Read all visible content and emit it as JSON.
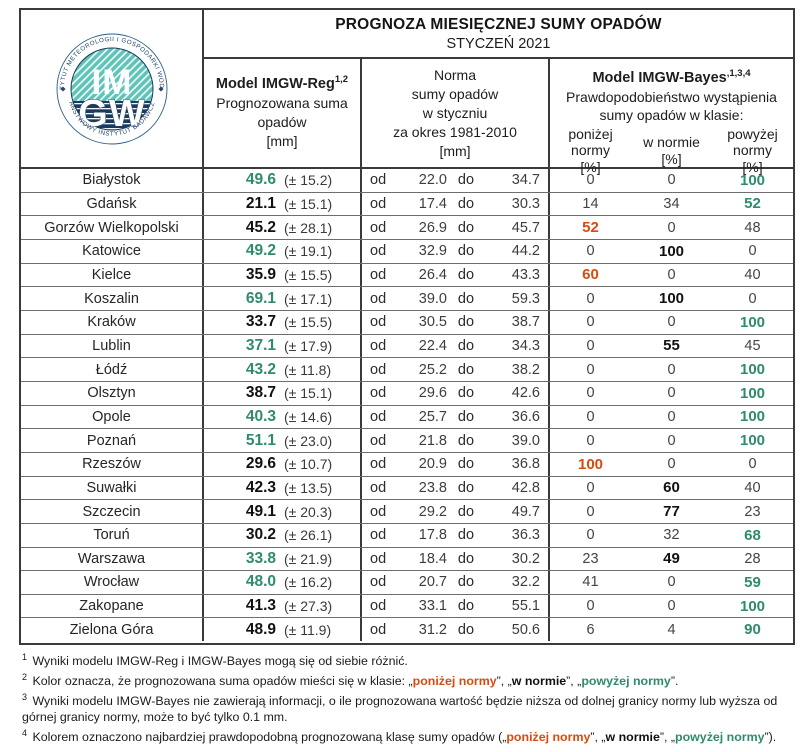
{
  "title": {
    "line1": "PROGNOZA MIESIĘCZNEJ SUMY OPADÓW",
    "line2": "STYCZEŃ 2021"
  },
  "logo": {
    "ring_top_text": "INSTYTUT METEOROLOGII I GOSPODARKI WODNEJ",
    "ring_bottom_text": "PAŃSTWOWY INSTYTUT BADAWCZY",
    "monogram_top": "IM",
    "monogram_bottom": "GW"
  },
  "columns": {
    "reg": {
      "title": "Model IMGW-Reg",
      "sup": "1,2",
      "line2": "Prognozowana suma",
      "line3": "opadów",
      "line4": "[mm]"
    },
    "norma": {
      "lines": [
        "Norma",
        "sumy opadów",
        "w styczniu",
        "za okres 1981-2010",
        "[mm]"
      ]
    },
    "bayes": {
      "title": "Model IMGW-Bayes",
      "sup": ",1,3,4",
      "line2": "Prawdopodobieństwo wystąpienia",
      "line3": "sumy opadów w klasie:",
      "classes": [
        {
          "l1": "poniżej",
          "l2": "normy",
          "l3": "[%]"
        },
        {
          "l1": "w normie",
          "l2": "[%]",
          "l3": ""
        },
        {
          "l1": "powyżej",
          "l2": "normy",
          "l3": "[%]"
        }
      ]
    }
  },
  "row_labels": {
    "od": "od",
    "do": "do"
  },
  "rows": [
    {
      "city": "Białystok",
      "value": "49.6",
      "value_class": "above",
      "pm": "(± 15.2)",
      "from": "22.0",
      "to": "34.7",
      "below": "0",
      "norm": "0",
      "above": "100",
      "max": "above"
    },
    {
      "city": "Gdańsk",
      "value": "21.1",
      "value_class": "norm",
      "pm": "(± 15.1)",
      "from": "17.4",
      "to": "30.3",
      "below": "14",
      "norm": "34",
      "above": "52",
      "max": "above"
    },
    {
      "city": "Gorzów Wielkopolski",
      "value": "45.2",
      "value_class": "norm",
      "pm": "(± 28.1)",
      "from": "26.9",
      "to": "45.7",
      "below": "52",
      "norm": "0",
      "above": "48",
      "max": "below"
    },
    {
      "city": "Katowice",
      "value": "49.2",
      "value_class": "above",
      "pm": "(± 19.1)",
      "from": "32.9",
      "to": "44.2",
      "below": "0",
      "norm": "100",
      "above": "0",
      "max": "norm"
    },
    {
      "city": "Kielce",
      "value": "35.9",
      "value_class": "norm",
      "pm": "(± 15.5)",
      "from": "26.4",
      "to": "43.3",
      "below": "60",
      "norm": "0",
      "above": "40",
      "max": "below"
    },
    {
      "city": "Koszalin",
      "value": "69.1",
      "value_class": "above",
      "pm": "(± 17.1)",
      "from": "39.0",
      "to": "59.3",
      "below": "0",
      "norm": "100",
      "above": "0",
      "max": "norm"
    },
    {
      "city": "Kraków",
      "value": "33.7",
      "value_class": "norm",
      "pm": "(± 15.5)",
      "from": "30.5",
      "to": "38.7",
      "below": "0",
      "norm": "0",
      "above": "100",
      "max": "above"
    },
    {
      "city": "Lublin",
      "value": "37.1",
      "value_class": "above",
      "pm": "(± 17.9)",
      "from": "22.4",
      "to": "34.3",
      "below": "0",
      "norm": "55",
      "above": "45",
      "max": "norm"
    },
    {
      "city": "Łódź",
      "value": "43.2",
      "value_class": "above",
      "pm": "(± 11.8)",
      "from": "25.2",
      "to": "38.2",
      "below": "0",
      "norm": "0",
      "above": "100",
      "max": "above"
    },
    {
      "city": "Olsztyn",
      "value": "38.7",
      "value_class": "norm",
      "pm": "(± 15.1)",
      "from": "29.6",
      "to": "42.6",
      "below": "0",
      "norm": "0",
      "above": "100",
      "max": "above"
    },
    {
      "city": "Opole",
      "value": "40.3",
      "value_class": "above",
      "pm": "(± 14.6)",
      "from": "25.7",
      "to": "36.6",
      "below": "0",
      "norm": "0",
      "above": "100",
      "max": "above"
    },
    {
      "city": "Poznań",
      "value": "51.1",
      "value_class": "above",
      "pm": "(± 23.0)",
      "from": "21.8",
      "to": "39.0",
      "below": "0",
      "norm": "0",
      "above": "100",
      "max": "above"
    },
    {
      "city": "Rzeszów",
      "value": "29.6",
      "value_class": "norm",
      "pm": "(± 10.7)",
      "from": "20.9",
      "to": "36.8",
      "below": "100",
      "norm": "0",
      "above": "0",
      "max": "below"
    },
    {
      "city": "Suwałki",
      "value": "42.3",
      "value_class": "norm",
      "pm": "(± 13.5)",
      "from": "23.8",
      "to": "42.8",
      "below": "0",
      "norm": "60",
      "above": "40",
      "max": "norm"
    },
    {
      "city": "Szczecin",
      "value": "49.1",
      "value_class": "norm",
      "pm": "(± 20.3)",
      "from": "29.2",
      "to": "49.7",
      "below": "0",
      "norm": "77",
      "above": "23",
      "max": "norm"
    },
    {
      "city": "Toruń",
      "value": "30.2",
      "value_class": "norm",
      "pm": "(± 26.1)",
      "from": "17.8",
      "to": "36.3",
      "below": "0",
      "norm": "32",
      "above": "68",
      "max": "above"
    },
    {
      "city": "Warszawa",
      "value": "33.8",
      "value_class": "above",
      "pm": "(± 21.9)",
      "from": "18.4",
      "to": "30.2",
      "below": "23",
      "norm": "49",
      "above": "28",
      "max": "norm"
    },
    {
      "city": "Wrocław",
      "value": "48.0",
      "value_class": "above",
      "pm": "(± 16.2)",
      "from": "20.7",
      "to": "32.2",
      "below": "41",
      "norm": "0",
      "above": "59",
      "max": "above"
    },
    {
      "city": "Zakopane",
      "value": "41.3",
      "value_class": "norm",
      "pm": "(± 27.3)",
      "from": "33.1",
      "to": "55.1",
      "below": "0",
      "norm": "0",
      "above": "100",
      "max": "above"
    },
    {
      "city": "Zielona Góra",
      "value": "48.9",
      "value_class": "norm",
      "pm": "(± 11.9)",
      "from": "31.2",
      "to": "50.6",
      "below": "6",
      "norm": "4",
      "above": "90",
      "max": "above"
    }
  ],
  "footnotes": [
    {
      "sup": "1",
      "segments": [
        {
          "t": "Wyniki modelu IMGW-Reg i IMGW-Bayes mogą się od siebie różnić.",
          "c": "plain"
        }
      ]
    },
    {
      "sup": "2",
      "segments": [
        {
          "t": "Kolor oznacza, że prognozowana suma opadów mieści się w klasie: „",
          "c": "plain"
        },
        {
          "t": "poniżej normy",
          "c": "below"
        },
        {
          "t": "”, „",
          "c": "plain"
        },
        {
          "t": "w normie",
          "c": "norm"
        },
        {
          "t": "”, „",
          "c": "plain"
        },
        {
          "t": "powyżej normy",
          "c": "above"
        },
        {
          "t": "”.",
          "c": "plain"
        }
      ]
    },
    {
      "sup": "3",
      "segments": [
        {
          "t": "Wyniki modelu IMGW-Bayes nie zawierają informacji, o ile prognozowana wartość będzie niższa od dolnej granicy normy lub wyższa od górnej granicy normy, może to być tylko 0.1 mm.",
          "c": "plain"
        }
      ]
    },
    {
      "sup": "4",
      "segments": [
        {
          "t": "Kolorem oznaczono najbardziej prawdopodobną prognozowaną klasę sumy opadów („",
          "c": "plain"
        },
        {
          "t": "poniżej normy",
          "c": "below"
        },
        {
          "t": "”, „",
          "c": "plain"
        },
        {
          "t": "w normie",
          "c": "norm"
        },
        {
          "t": "”, „",
          "c": "plain"
        },
        {
          "t": "powyżej normy",
          "c": "above"
        },
        {
          "t": "”).",
          "c": "plain"
        }
      ]
    }
  ],
  "colors": {
    "above_norm_green": "#2e8b6e",
    "below_norm_orange": "#d94a0f",
    "in_norm_black": "#111111",
    "logo_teal": "#5fc3b8",
    "logo_navy": "#1c3b5e"
  }
}
